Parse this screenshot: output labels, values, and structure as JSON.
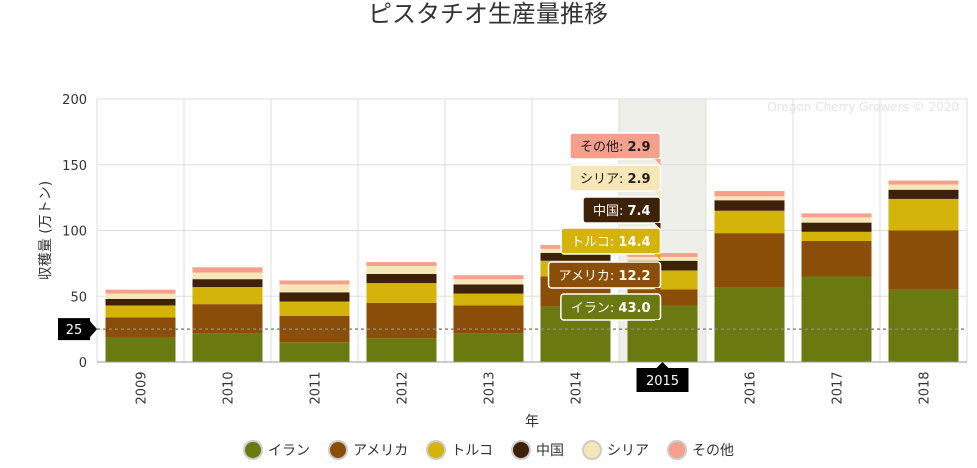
{
  "chart_data": {
    "type": "bar",
    "stacked": true,
    "title": "ピスタチオ生産量推移",
    "xlabel": "年",
    "ylabel": "収穫量 (万トン)",
    "ylim": [
      0,
      200
    ],
    "yticks": [
      0,
      50,
      100,
      150,
      200
    ],
    "grid": true,
    "legend_position": "bottom",
    "watermark": "Oregon Cherry Growers © 2020",
    "categories": [
      "2009",
      "2010",
      "2011",
      "2012",
      "2013",
      "2014",
      "2015",
      "2016",
      "2017",
      "2018"
    ],
    "series": [
      {
        "name": "イラン",
        "color": "#6b7a10",
        "values": [
          19,
          22,
          15,
          18,
          22,
          42,
          43.0,
          57,
          65,
          55
        ]
      },
      {
        "name": "アメリカ",
        "color": "#8b4e08",
        "values": [
          15,
          22,
          20,
          27,
          21,
          23,
          12.2,
          41,
          27,
          45
        ]
      },
      {
        "name": "トルコ",
        "color": "#d4b30a",
        "values": [
          9,
          13,
          11,
          15,
          9,
          12,
          14.4,
          17,
          7,
          24
        ]
      },
      {
        "name": "中国",
        "color": "#3e2208",
        "values": [
          5,
          6,
          7,
          7,
          7,
          6,
          7.4,
          8,
          7,
          7
        ]
      },
      {
        "name": "シリア",
        "color": "#f5e7b8",
        "values": [
          4,
          5,
          6,
          6,
          4,
          3,
          2.9,
          3,
          4,
          4
        ]
      },
      {
        "name": "その他",
        "color": "#f4a08c",
        "values": [
          3,
          4,
          3,
          3,
          3,
          3,
          2.9,
          4,
          3,
          3
        ]
      }
    ],
    "highlight": {
      "category": "2015",
      "label": "2015"
    },
    "crosshair": {
      "value": 25,
      "label": "25"
    },
    "tooltips": [
      {
        "series": "その他",
        "label": "その他: ",
        "value": "2.9"
      },
      {
        "series": "シリア",
        "label": "シリア: ",
        "value": "2.9"
      },
      {
        "series": "中国",
        "label": "中国: ",
        "value": "7.4"
      },
      {
        "series": "トルコ",
        "label": "トルコ: ",
        "value": "14.4"
      },
      {
        "series": "アメリカ",
        "label": "アメリカ: ",
        "value": "12.2"
      },
      {
        "series": "イラン",
        "label": "イラン: ",
        "value": "43.0"
      }
    ]
  }
}
